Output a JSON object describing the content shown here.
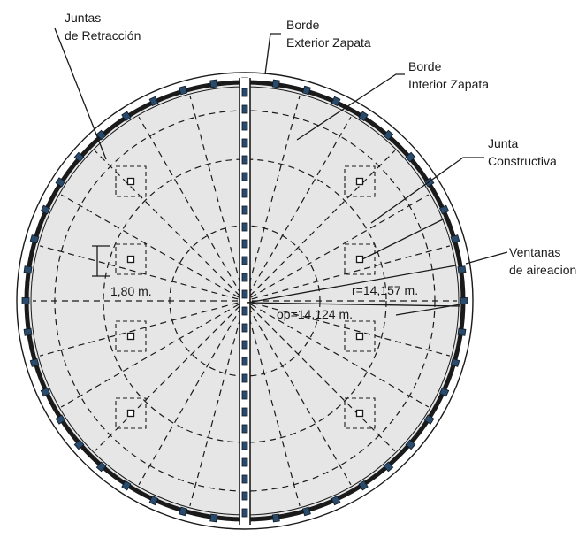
{
  "labels": {
    "juntas_retraccion_line1": "Juntas",
    "juntas_retraccion_line2": "de Retracción",
    "borde_exterior_line1": "Borde",
    "borde_exterior_line2": "Exterior Zapata",
    "borde_interior_line1": "Borde",
    "borde_interior_line2": "Interior Zapata",
    "junta_constructiva_line1": "Junta",
    "junta_constructiva_line2": "Constructiva",
    "ventanas_line1": "Ventanas",
    "ventanas_line2": "de aireacion",
    "dim_pedestal": "1,80 m.",
    "dim_radius": "r=14,157 m.",
    "dim_op": "op=14,124 m."
  },
  "colors": {
    "floor_fill": "#e6e6e6",
    "wall": "#1a1a1a",
    "window": "#2a4a6b",
    "dashed": "#1a1a1a"
  }
}
